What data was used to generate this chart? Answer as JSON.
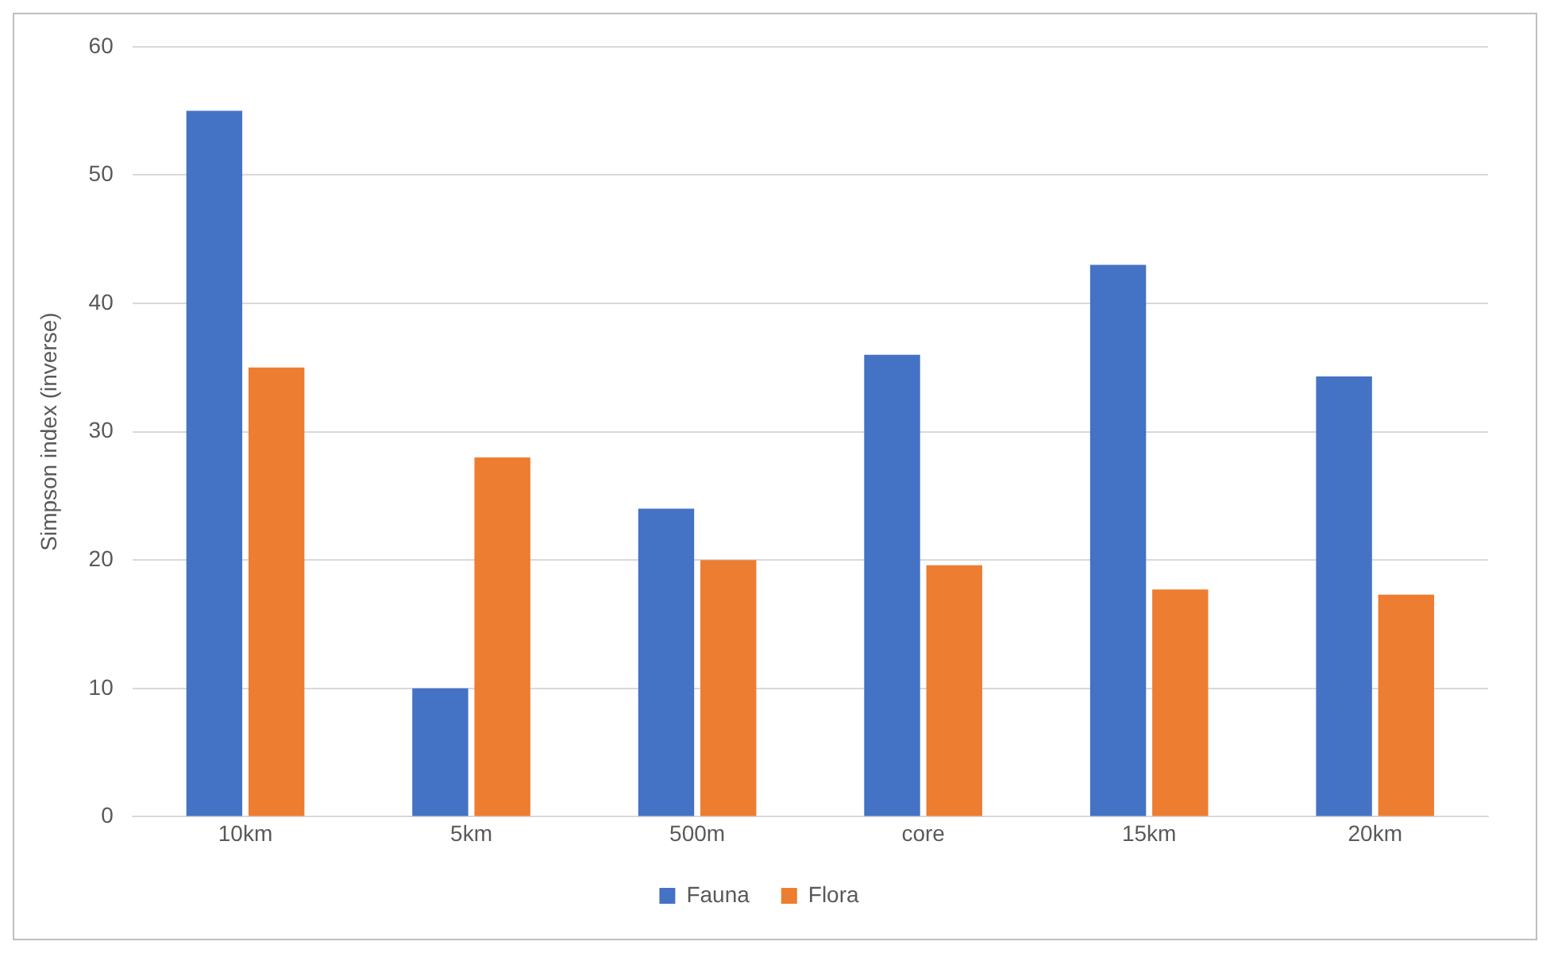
{
  "chart_data": {
    "type": "bar",
    "ylabel": "Simpson index (inverse)",
    "categories": [
      "10km",
      "5km",
      "500m",
      "core",
      "15km",
      "20km"
    ],
    "series": [
      {
        "name": "Fauna",
        "color": "#4472c4",
        "values": [
          55,
          10,
          24,
          36,
          43,
          34.3
        ]
      },
      {
        "name": "Flora",
        "color": "#ed7d31",
        "values": [
          35,
          28,
          20,
          19.6,
          17.7,
          17.3
        ]
      }
    ],
    "ylim": [
      0,
      60
    ],
    "yticks": [
      0,
      10,
      20,
      30,
      40,
      50,
      60
    ],
    "grid": "y",
    "legend": "bottom"
  }
}
